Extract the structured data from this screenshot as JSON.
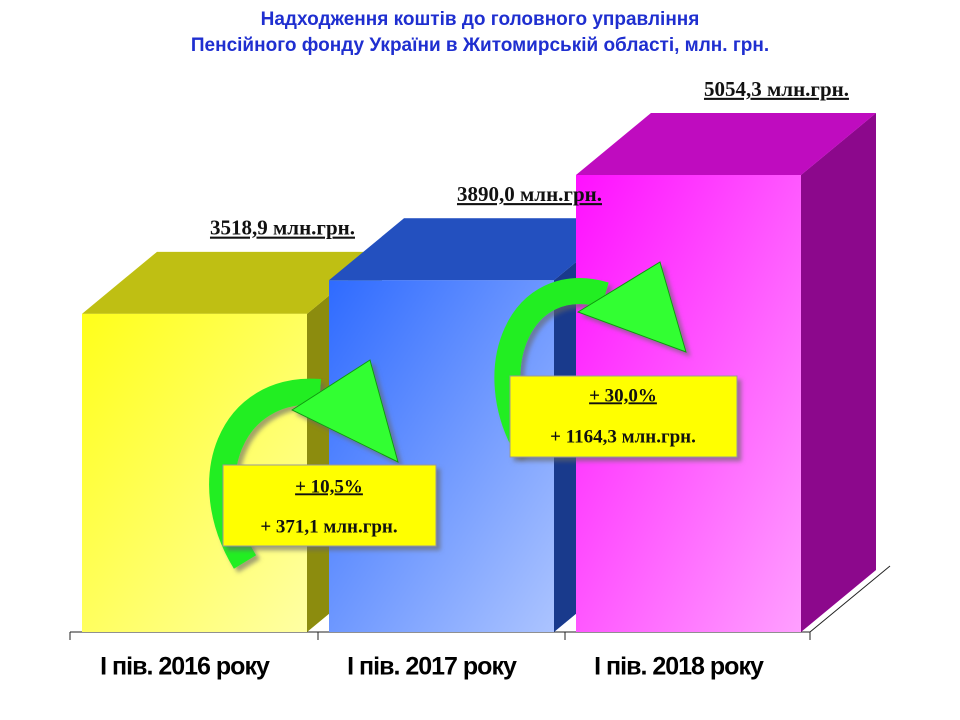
{
  "chart_data": {
    "type": "bar3d",
    "title": [
      "Надходження коштів до головного управління",
      "Пенсійного фонду України в Житомирській області, млн. грн."
    ],
    "categories": [
      "І пів. 2016 року",
      "І пів. 2017 року",
      "І пів. 2018 року"
    ],
    "values": [
      3518.9,
      3890.0,
      5054.3
    ],
    "value_labels": [
      "3518,9 млн.грн.",
      "3890,0 млн.грн.",
      "5054,3 млн.грн."
    ],
    "colors": [
      "#ffff1a",
      "#2f6bff",
      "#ff10ff"
    ],
    "annotations": [
      [
        "+ 10,5%",
        "+ 371,1 млн.грн."
      ],
      [
        "+ 30,0%",
        "+ 1164,3 млн.грн."
      ]
    ]
  }
}
